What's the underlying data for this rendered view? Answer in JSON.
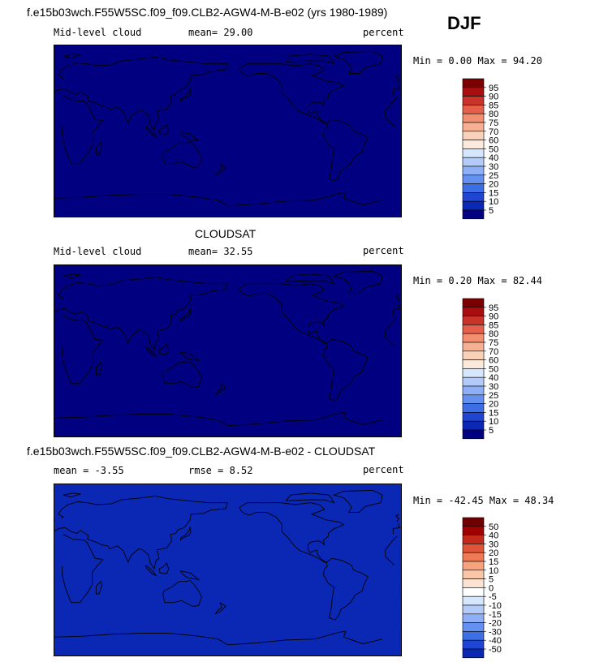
{
  "season": "DJF",
  "colors": {
    "abs_scale": [
      "#000080",
      "#0a28b4",
      "#1e46d2",
      "#3c6ee6",
      "#6490f0",
      "#8caff5",
      "#b4cbfa",
      "#d6e6fc",
      "#fbe9dc",
      "#f9d0b8",
      "#f6b092",
      "#f28f6e",
      "#e4604a",
      "#c93428",
      "#a80e10",
      "#7a0000"
    ],
    "diff_scale": [
      "#000080",
      "#0a28b4",
      "#1e46d2",
      "#3c6ee6",
      "#6490f0",
      "#8caff5",
      "#b4cbfa",
      "#d6e6fc",
      "#ffffff",
      "#fbe3d4",
      "#f9c6aa",
      "#f6a27c",
      "#ef7a56",
      "#e0543a",
      "#c42a1c",
      "#a00000",
      "#700000"
    ],
    "land": "#000000"
  },
  "panels": [
    {
      "title": "f.e15b03wch.F55W5SC.f09_f09.CLB2-AGW4-M-B-e02 (yrs 1980-1989)",
      "left_label": "Mid-level cloud",
      "stat1": "mean=  29.00",
      "stat2": "",
      "units": "percent",
      "minmax": "Min =   0.00 Max =  94.20"
    },
    {
      "title": "CLOUDSAT",
      "left_label": "Mid-level cloud",
      "stat1": "mean=  32.55",
      "stat2": "",
      "units": "percent",
      "minmax": "Min =   0.20 Max =  82.44"
    },
    {
      "title": "f.e15b03wch.F55W5SC.f09_f09.CLB2-AGW4-M-B-e02 - CLOUDSAT",
      "left_label": "mean = -3.55",
      "stat1": "rmse =  8.52",
      "stat2": "",
      "units": "percent",
      "minmax": "Min = -42.45 Max =  48.34"
    }
  ],
  "chart_data": [
    {
      "type": "heatmap",
      "title": "f.e15b03wch.F55W5SC.f09_f09.CLB2-AGW4-M-B-e02 (yrs 1980-1989)",
      "variable": "Mid-level cloud",
      "units": "percent",
      "mean": 29.0,
      "min": 0.0,
      "max": 94.2,
      "colorbar_levels": [
        95,
        90,
        85,
        80,
        75,
        70,
        60,
        50,
        40,
        30,
        25,
        20,
        15,
        10,
        5
      ]
    },
    {
      "type": "heatmap",
      "title": "CLOUDSAT",
      "variable": "Mid-level cloud",
      "units": "percent",
      "mean": 32.55,
      "min": 0.2,
      "max": 82.44,
      "colorbar_levels": [
        95,
        90,
        85,
        80,
        75,
        70,
        60,
        50,
        40,
        30,
        25,
        20,
        15,
        10,
        5
      ]
    },
    {
      "type": "heatmap",
      "title": "f.e15b03wch.F55W5SC.f09_f09.CLB2-AGW4-M-B-e02 - CLOUDSAT",
      "units": "percent",
      "mean": -3.55,
      "rmse": 8.52,
      "min": -42.45,
      "max": 48.34,
      "colorbar_levels": [
        50,
        40,
        30,
        20,
        15,
        10,
        5,
        0,
        -5,
        -10,
        -15,
        -20,
        -30,
        -40,
        -50
      ]
    }
  ]
}
